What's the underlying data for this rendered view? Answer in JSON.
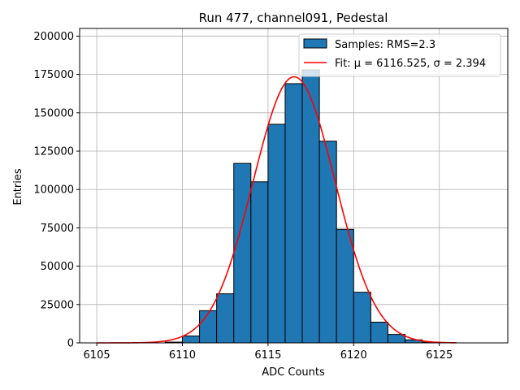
{
  "chart_data": {
    "type": "bar",
    "title": "Run 477, channel091, Pedestal",
    "xlabel": "ADC Counts",
    "ylabel": "Entries",
    "xlim": [
      6104.0,
      6129.0
    ],
    "ylim": [
      0,
      205000
    ],
    "xticks": [
      6105,
      6110,
      6115,
      6120,
      6125
    ],
    "yticks": [
      0,
      25000,
      50000,
      75000,
      100000,
      125000,
      150000,
      175000,
      200000
    ],
    "grid": true,
    "legend_position": "top-right",
    "histogram": {
      "name": "Samples: RMS=2.3",
      "color": "#1f77b4",
      "bin_width": 1,
      "bin_starts": [
        6105,
        6106,
        6107,
        6108,
        6109,
        6110,
        6111,
        6112,
        6113,
        6114,
        6115,
        6116,
        6117,
        6118,
        6119,
        6120,
        6121,
        6122,
        6123,
        6124,
        6125,
        6126,
        6127
      ],
      "values": [
        0,
        0,
        0,
        0,
        500,
        4500,
        21000,
        32000,
        117000,
        105000,
        142500,
        169000,
        178000,
        131500,
        74000,
        33000,
        13500,
        5500,
        2000,
        500,
        0,
        0,
        0
      ]
    },
    "fit": {
      "name": "Fit: μ = 6116.525, σ = 2.394",
      "color": "#ff0000",
      "mu": 6116.525,
      "sigma": 2.394,
      "amplitude": 173500,
      "x_range": [
        6105,
        6126
      ]
    }
  }
}
